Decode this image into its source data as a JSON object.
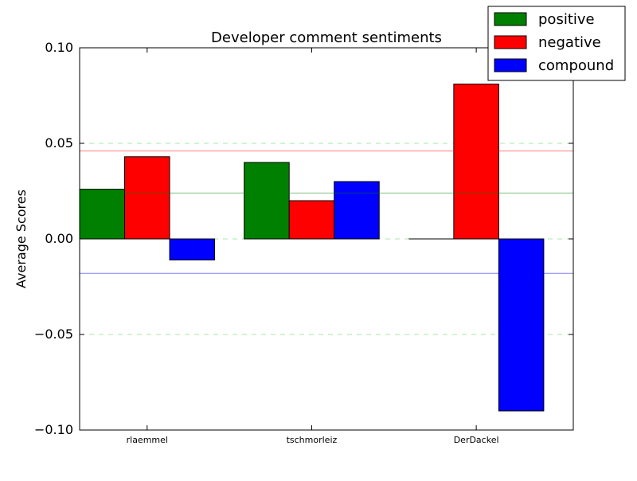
{
  "chart_data": {
    "type": "bar",
    "title": "Developer comment sentiments",
    "xlabel": "",
    "ylabel": "Average Scores",
    "categories": [
      "rlaemmel",
      "tschmorleiz",
      "DerDackel"
    ],
    "series": [
      {
        "name": "positive",
        "color": "#008000",
        "values": [
          0.026,
          0.04,
          0.0
        ]
      },
      {
        "name": "negative",
        "color": "#ff0000",
        "values": [
          0.043,
          0.02,
          0.081
        ]
      },
      {
        "name": "compound",
        "color": "#0000ff",
        "values": [
          -0.011,
          0.03,
          -0.09
        ]
      }
    ],
    "ylim": [
      -0.1,
      0.1
    ],
    "yticks": [
      -0.1,
      -0.05,
      0.0,
      0.05,
      0.1
    ],
    "ytick_labels": [
      "−0.10",
      "−0.05",
      "0.00",
      "0.05",
      "0.10"
    ],
    "reference_lines": [
      {
        "series": "positive",
        "value": 0.024,
        "style": "solid"
      },
      {
        "series": "negative",
        "value": 0.046,
        "style": "solid"
      },
      {
        "series": "compound",
        "value": -0.018,
        "style": "solid"
      }
    ],
    "gridlines": [
      {
        "color": "#00c000",
        "value": 0.05,
        "style": "dashed"
      },
      {
        "color": "#00c000",
        "value": 0.0,
        "style": "dashed"
      },
      {
        "color": "#00c000",
        "value": -0.05,
        "style": "dashed"
      }
    ],
    "legend": {
      "placement": "top-right"
    },
    "grid": false
  }
}
